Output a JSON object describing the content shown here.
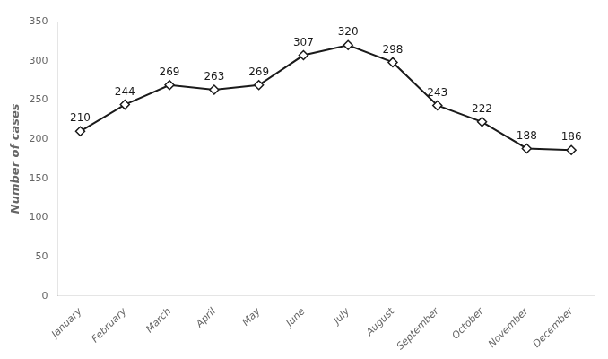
{
  "chart_data": {
    "type": "line",
    "ylabel": "Number of cases",
    "categories": [
      "January",
      "February",
      "March",
      "April",
      "May",
      "June",
      "July",
      "August",
      "September",
      "October",
      "November",
      "December"
    ],
    "values": [
      210,
      244,
      269,
      263,
      269,
      307,
      320,
      298,
      243,
      222,
      188,
      186
    ],
    "color": "#1a1a1a",
    "marker": "diamond",
    "ylim": [
      0,
      350
    ],
    "yticks": [
      0,
      50,
      100,
      150,
      200,
      250,
      300,
      350
    ],
    "grid": false,
    "data_labels": true
  }
}
